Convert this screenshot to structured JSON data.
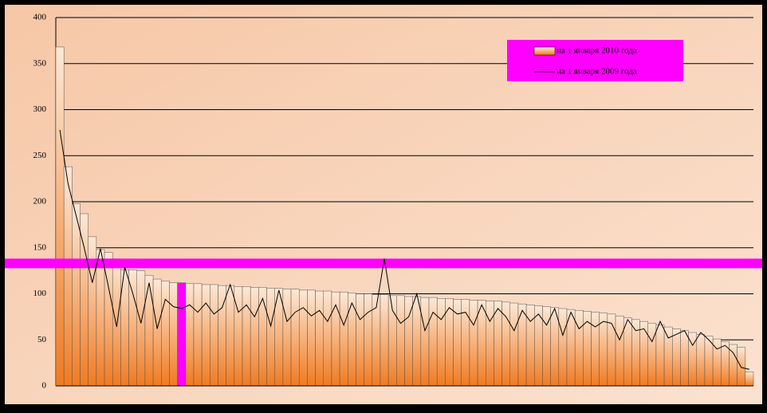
{
  "chart_data": {
    "type": "bar",
    "series": [
      {
        "name": "на 1 января 2010 года",
        "kind": "bar",
        "color": "#f08a3c",
        "values": [
          368,
          238,
          198,
          187,
          162,
          148,
          145,
          138,
          126,
          126,
          125,
          120,
          116,
          114,
          112,
          112,
          111,
          111,
          110,
          110,
          109,
          109,
          108,
          108,
          107,
          107,
          106,
          106,
          105,
          105,
          104,
          104,
          103,
          103,
          102,
          102,
          101,
          100,
          100,
          99,
          99,
          98,
          98,
          97,
          97,
          96,
          96,
          95,
          95,
          94,
          94,
          93,
          93,
          92,
          92,
          91,
          90,
          89,
          88,
          87,
          86,
          85,
          84,
          83,
          82,
          81,
          80,
          79,
          78,
          76,
          74,
          72,
          70,
          68,
          66,
          64,
          62,
          60,
          58,
          56,
          54,
          51,
          48,
          45,
          42,
          15
        ]
      },
      {
        "name": "на 1 января 2009 года",
        "kind": "line",
        "color": "#000000",
        "values": [
          278,
          220,
          185,
          150,
          112,
          149,
          107,
          64,
          129,
          100,
          68,
          112,
          62,
          94,
          86,
          84,
          88,
          80,
          90,
          78,
          85,
          110,
          80,
          88,
          75,
          95,
          65,
          104,
          70,
          80,
          85,
          76,
          82,
          70,
          88,
          66,
          90,
          72,
          80,
          85,
          138,
          82,
          68,
          75,
          100,
          60,
          80,
          72,
          85,
          78,
          80,
          66,
          88,
          70,
          84,
          75,
          60,
          82,
          70,
          78,
          66,
          84,
          55,
          80,
          62,
          70,
          64,
          70,
          68,
          50,
          72,
          60,
          62,
          48,
          70,
          52,
          56,
          60,
          44,
          58,
          50,
          40,
          44,
          36,
          20,
          18
        ]
      }
    ],
    "highlight_bar": {
      "index": 15,
      "color": "#ff00ff"
    },
    "reference_line": {
      "value": 133,
      "color": "#ff00ff"
    },
    "ylim": [
      0,
      400
    ],
    "yticks": [
      0,
      50,
      100,
      150,
      200,
      250,
      300,
      350,
      400
    ],
    "grid": true,
    "legend": "top-right"
  }
}
